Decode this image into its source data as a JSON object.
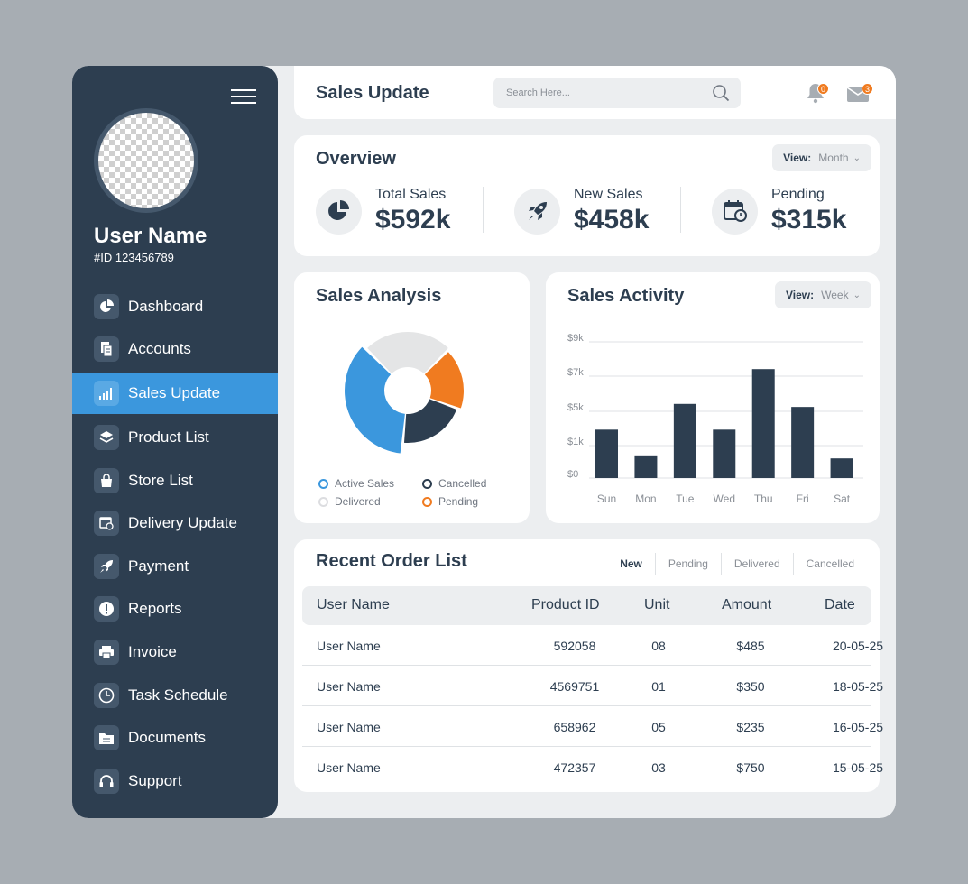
{
  "sidebar": {
    "user_name": "User Name",
    "user_id": "#ID 123456789",
    "items": [
      {
        "label": "Dashboard",
        "icon": "pie-chart-icon"
      },
      {
        "label": "Accounts",
        "icon": "document-icon"
      },
      {
        "label": "Sales Update",
        "icon": "signal-bars-icon",
        "active": true
      },
      {
        "label": "Product List",
        "icon": "layers-icon"
      },
      {
        "label": "Store List",
        "icon": "shopping-bag-icon"
      },
      {
        "label": "Delivery Update",
        "icon": "calendar-clock-icon"
      },
      {
        "label": "Payment",
        "icon": "rocket-icon"
      },
      {
        "label": "Reports",
        "icon": "alert-icon"
      },
      {
        "label": "Invoice",
        "icon": "printer-icon"
      },
      {
        "label": "Task Schedule",
        "icon": "clock-icon"
      },
      {
        "label": "Documents",
        "icon": "folder-icon"
      },
      {
        "label": "Support",
        "icon": "headset-icon"
      }
    ]
  },
  "header": {
    "title": "Sales Update",
    "search_placeholder": "Search Here...",
    "notifications_count": "0",
    "messages_count": "3"
  },
  "overview": {
    "title": "Overview",
    "view_label": "View:",
    "view_value": "Month",
    "stats": [
      {
        "label": "Total Sales",
        "value": "$592k",
        "icon": "pie-chart-icon"
      },
      {
        "label": "New Sales",
        "value": "$458k",
        "icon": "rocket-icon"
      },
      {
        "label": "Pending",
        "value": "$315k",
        "icon": "calendar-clock-icon"
      }
    ]
  },
  "analysis": {
    "title": "Sales Analysis",
    "legend": [
      {
        "label": "Active Sales",
        "color": "#3b97dd"
      },
      {
        "label": "Cancelled",
        "color": "#2d3e50"
      },
      {
        "label": "Delivered",
        "color": "#e4e5e6"
      },
      {
        "label": "Pending",
        "color": "#f07b20"
      }
    ]
  },
  "activity": {
    "title": "Sales Activity",
    "view_label": "View:",
    "view_value": "Week"
  },
  "chart_data": [
    {
      "type": "pie",
      "categories": [
        "Delivered",
        "Pending",
        "Cancelled",
        "Active Sales"
      ],
      "values": [
        25,
        18,
        21,
        36
      ],
      "colors": [
        "#e4e5e6",
        "#f07b20",
        "#2d3e50",
        "#3b97dd"
      ]
    },
    {
      "type": "bar",
      "categories": [
        "Sun",
        "Mon",
        "Tue",
        "Wed",
        "Thu",
        "Fri",
        "Sat"
      ],
      "values": [
        3.2,
        1.5,
        4.9,
        3.2,
        7.2,
        4.7,
        1.3
      ],
      "y_ticks": [
        "$9k",
        "$7k",
        "$5k",
        "$1k",
        "$0"
      ],
      "color": "#2d3e50",
      "grid": true
    }
  ],
  "orders": {
    "title": "Recent Order List",
    "filters": [
      "New",
      "Pending",
      "Delivered",
      "Cancelled"
    ],
    "columns": [
      "User Name",
      "Product ID",
      "Unit",
      "Amount",
      "Date"
    ],
    "rows": [
      [
        "User Name",
        "592058",
        "08",
        "$485",
        "20-05-25"
      ],
      [
        "User Name",
        "4569751",
        "01",
        "$350",
        "18-05-25"
      ],
      [
        "User Name",
        "658962",
        "05",
        "$235",
        "16-05-25"
      ],
      [
        "User Name",
        "472357",
        "03",
        "$750",
        "15-05-25"
      ]
    ]
  }
}
